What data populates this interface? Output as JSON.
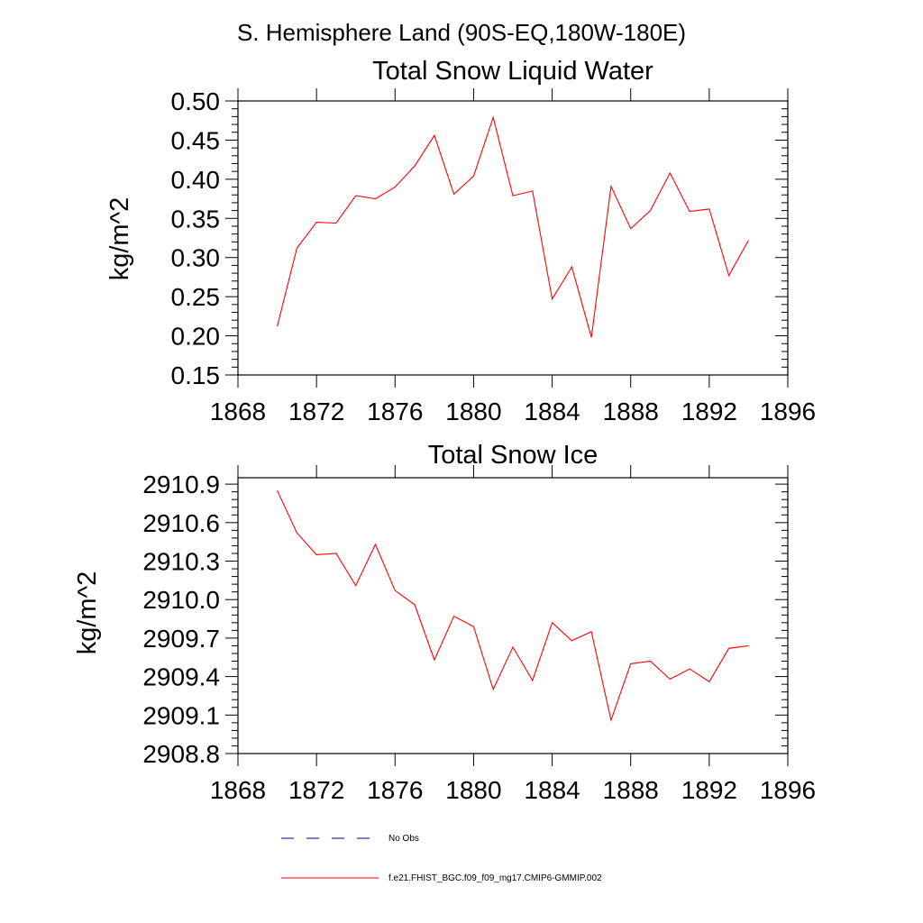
{
  "page_title": "S. Hemisphere Land (90S-EQ,180W-180E)",
  "series_color": "#ff0000",
  "chart_data": [
    {
      "type": "line",
      "title": "Total Snow Liquid Water",
      "xlabel": "",
      "ylabel": "kg/m^2",
      "xlim": [
        1868,
        1896
      ],
      "ylim": [
        0.15,
        0.5
      ],
      "xticks": [
        1868,
        1872,
        1876,
        1880,
        1884,
        1888,
        1892,
        1896
      ],
      "xtick_labels": [
        "1868",
        "1872",
        "1876",
        "1880",
        "1884",
        "1888",
        "1892",
        "1896"
      ],
      "yticks": [
        0.15,
        0.2,
        0.25,
        0.3,
        0.35,
        0.4,
        0.45,
        0.5
      ],
      "ytick_labels": [
        "0.15",
        "0.20",
        "0.25",
        "0.30",
        "0.35",
        "0.40",
        "0.45",
        "0.50"
      ],
      "x": [
        1870,
        1871,
        1872,
        1873,
        1874,
        1875,
        1876,
        1877,
        1878,
        1879,
        1880,
        1881,
        1882,
        1883,
        1884,
        1885,
        1886,
        1887,
        1888,
        1889,
        1890,
        1891,
        1892,
        1893,
        1894
      ],
      "series": [
        {
          "name": "f.e21.FHIST_BGC.f09_f09_mg17.CMIP6-GMMIP.002",
          "color": "#ff0000",
          "values": [
            0.212,
            0.312,
            0.345,
            0.344,
            0.379,
            0.375,
            0.39,
            0.417,
            0.456,
            0.381,
            0.404,
            0.479,
            0.379,
            0.385,
            0.247,
            0.288,
            0.198,
            0.391,
            0.337,
            0.36,
            0.408,
            0.359,
            0.362,
            0.277,
            0.322
          ]
        }
      ]
    },
    {
      "type": "line",
      "title": "Total Snow Ice",
      "xlabel": "",
      "ylabel": "kg/m^2",
      "xlim": [
        1868,
        1896
      ],
      "ylim": [
        2908.8,
        2910.95
      ],
      "xticks": [
        1868,
        1872,
        1876,
        1880,
        1884,
        1888,
        1892,
        1896
      ],
      "xtick_labels": [
        "1868",
        "1872",
        "1876",
        "1880",
        "1884",
        "1888",
        "1892",
        "1896"
      ],
      "yticks": [
        2908.8,
        2909.1,
        2909.4,
        2909.7,
        2910.0,
        2910.3,
        2910.6,
        2910.9
      ],
      "ytick_labels": [
        "2908.8",
        "2909.1",
        "2909.4",
        "2909.7",
        "2910.0",
        "2910.3",
        "2910.6",
        "2910.9"
      ],
      "x": [
        1870,
        1871,
        1872,
        1873,
        1874,
        1875,
        1876,
        1877,
        1878,
        1879,
        1880,
        1881,
        1882,
        1883,
        1884,
        1885,
        1886,
        1887,
        1888,
        1889,
        1890,
        1891,
        1892,
        1893,
        1894
      ],
      "series": [
        {
          "name": "f.e21.FHIST_BGC.f09_f09_mg17.CMIP6-GMMIP.002",
          "color": "#ff0000",
          "values": [
            2910.85,
            2910.52,
            2910.35,
            2910.36,
            2910.11,
            2910.43,
            2910.07,
            2909.96,
            2909.53,
            2909.87,
            2909.79,
            2909.3,
            2909.63,
            2909.37,
            2909.82,
            2909.68,
            2909.75,
            2909.06,
            2909.5,
            2909.52,
            2909.38,
            2909.46,
            2909.36,
            2909.62,
            2909.64
          ]
        }
      ]
    }
  ],
  "legend": {
    "position": "bottom",
    "items": [
      {
        "label": "No Obs",
        "style": "dashed",
        "color": "#000080"
      },
      {
        "label": "f.e21.FHIST_BGC.f09_f09_mg17.CMIP6-GMMIP.002",
        "style": "solid",
        "color": "#ff0000"
      }
    ]
  }
}
